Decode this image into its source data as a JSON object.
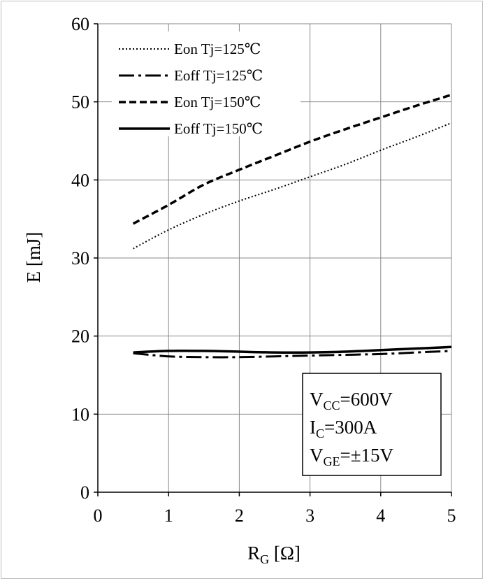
{
  "chart_data": {
    "type": "line",
    "xlabel": "R",
    "xlabel_sub": "G",
    "xlabel_unit": " [Ω]",
    "ylabel": "E [mJ]",
    "xlim": [
      0,
      5
    ],
    "ylim": [
      0,
      60
    ],
    "xticks": [
      0,
      1,
      2,
      3,
      4,
      5
    ],
    "yticks": [
      0,
      10,
      20,
      30,
      40,
      50,
      60
    ],
    "grid": true,
    "legend_position": "top-left",
    "series": [
      {
        "name": "Eon Tj=125℃",
        "style": "dotted",
        "x": [
          0.5,
          1,
          1.5,
          2,
          2.5,
          3,
          3.5,
          4,
          4.5,
          5
        ],
        "y": [
          31.2,
          33.6,
          35.6,
          37.3,
          38.8,
          40.4,
          42.0,
          43.8,
          45.5,
          47.3
        ]
      },
      {
        "name": "Eoff Tj=125℃",
        "style": "dashdot",
        "x": [
          0.5,
          1,
          1.5,
          2,
          2.5,
          3,
          3.5,
          4,
          4.5,
          5
        ],
        "y": [
          17.8,
          17.4,
          17.3,
          17.3,
          17.4,
          17.5,
          17.6,
          17.7,
          17.9,
          18.1
        ]
      },
      {
        "name": "Eon Tj=150℃",
        "style": "dashed",
        "x": [
          0.5,
          1,
          1.5,
          2,
          2.5,
          3,
          3.5,
          4,
          4.5,
          5
        ],
        "y": [
          34.4,
          36.8,
          39.4,
          41.3,
          43.1,
          44.9,
          46.5,
          48.0,
          49.5,
          50.9
        ]
      },
      {
        "name": "Eoff Tj=150℃",
        "style": "solid",
        "x": [
          0.5,
          1,
          1.5,
          2,
          2.5,
          3,
          3.5,
          4,
          4.5,
          5
        ],
        "y": [
          17.9,
          18.1,
          18.1,
          18.0,
          17.9,
          17.9,
          18.0,
          18.2,
          18.4,
          18.6
        ]
      }
    ],
    "annotation": [
      {
        "main": "V",
        "sub": "CC",
        "rest": "=600V"
      },
      {
        "main": "I",
        "sub": "C",
        "rest": "=300A"
      },
      {
        "main": "V",
        "sub": "GE",
        "rest": "=±15V"
      }
    ]
  }
}
